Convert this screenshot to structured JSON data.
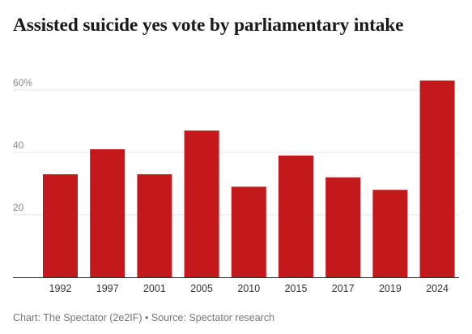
{
  "chart_data": {
    "type": "bar",
    "title": "Assisted suicide yes vote by parliamentary intake",
    "categories": [
      "1992",
      "1997",
      "2001",
      "2005",
      "2010",
      "2015",
      "2017",
      "2019",
      "2024"
    ],
    "values": [
      33,
      41,
      33,
      47,
      29,
      39,
      32,
      28,
      63
    ],
    "yticks": [
      "20",
      "40",
      "60%"
    ],
    "ytick_values": [
      20,
      40,
      60
    ],
    "ylim": [
      0,
      67
    ],
    "grid": true,
    "bar_color": "#c4191c"
  },
  "footer": {
    "credit": "Chart: The Spectator (2e2IF) • Source: Spectator research"
  }
}
